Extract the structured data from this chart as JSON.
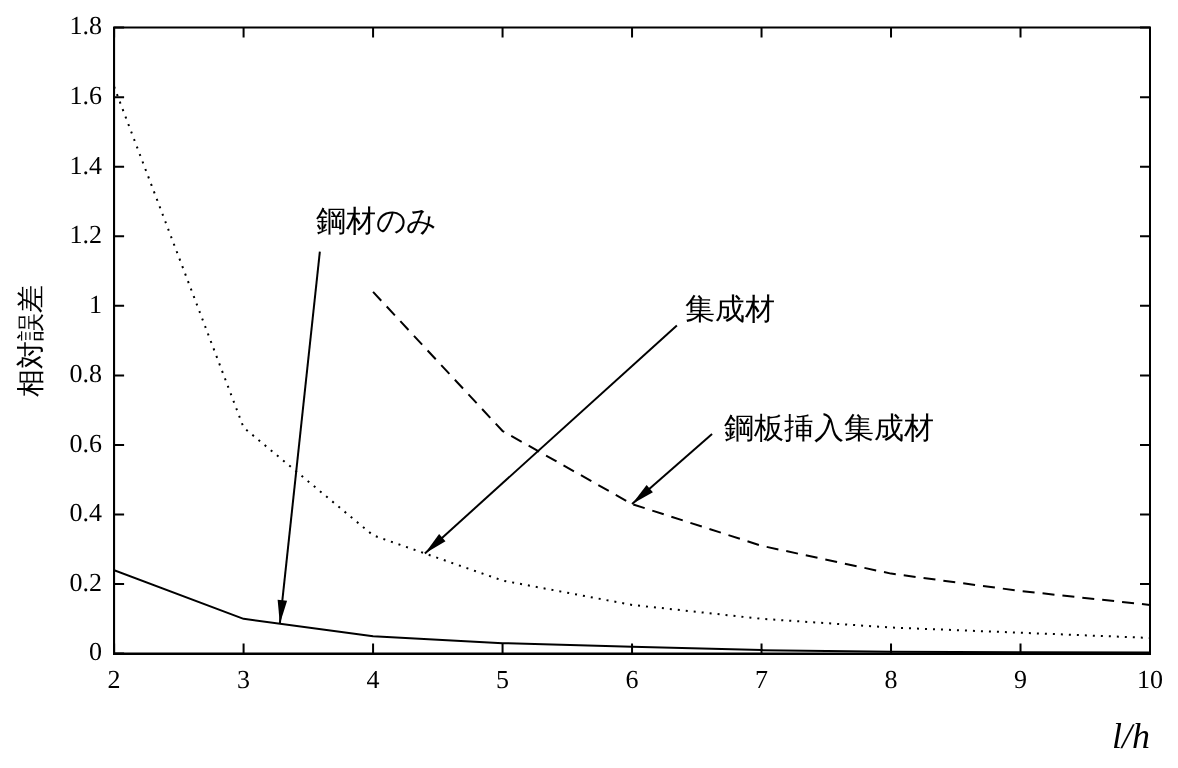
{
  "chart_data": {
    "type": "line",
    "xlabel": "l/h",
    "ylabel": "相対誤差",
    "x": [
      2,
      3,
      4,
      5,
      6,
      7,
      8,
      9,
      10
    ],
    "series": [
      {
        "color": "#000000",
        "line_style": "solid",
        "values": [
          0.24,
          0.1,
          0.05,
          0.03,
          0.02,
          0.01,
          0.005,
          0.004,
          0.003
        ]
      },
      {
        "color": "#000000",
        "line_style": "dotted",
        "values": [
          1.63,
          0.65,
          0.34,
          0.21,
          0.14,
          0.1,
          0.075,
          0.06,
          0.045
        ]
      },
      {
        "color": "#000000",
        "line_style": "dashed",
        "values": [
          null,
          null,
          1.04,
          0.64,
          0.43,
          0.31,
          0.23,
          0.18,
          0.14
        ]
      }
    ],
    "annotations": [
      {
        "text": "鋼材のみ",
        "x": 3.28,
        "y": 0.086
      },
      {
        "text": "集成材",
        "x": 4.4,
        "y": 0.288
      },
      {
        "text": "鋼板挿入集成材",
        "x": 6,
        "y": 0.43
      }
    ],
    "xlim": [
      2,
      10
    ],
    "xticks": [
      2,
      3,
      4,
      5,
      6,
      7,
      8,
      9,
      10
    ],
    "ylim": [
      0,
      1.8
    ],
    "yticks": [
      0,
      0.2,
      0.4,
      0.6,
      0.8,
      1,
      1.2,
      1.4,
      1.6,
      1.8
    ],
    "grid": false,
    "legend": false,
    "marker": "none"
  }
}
